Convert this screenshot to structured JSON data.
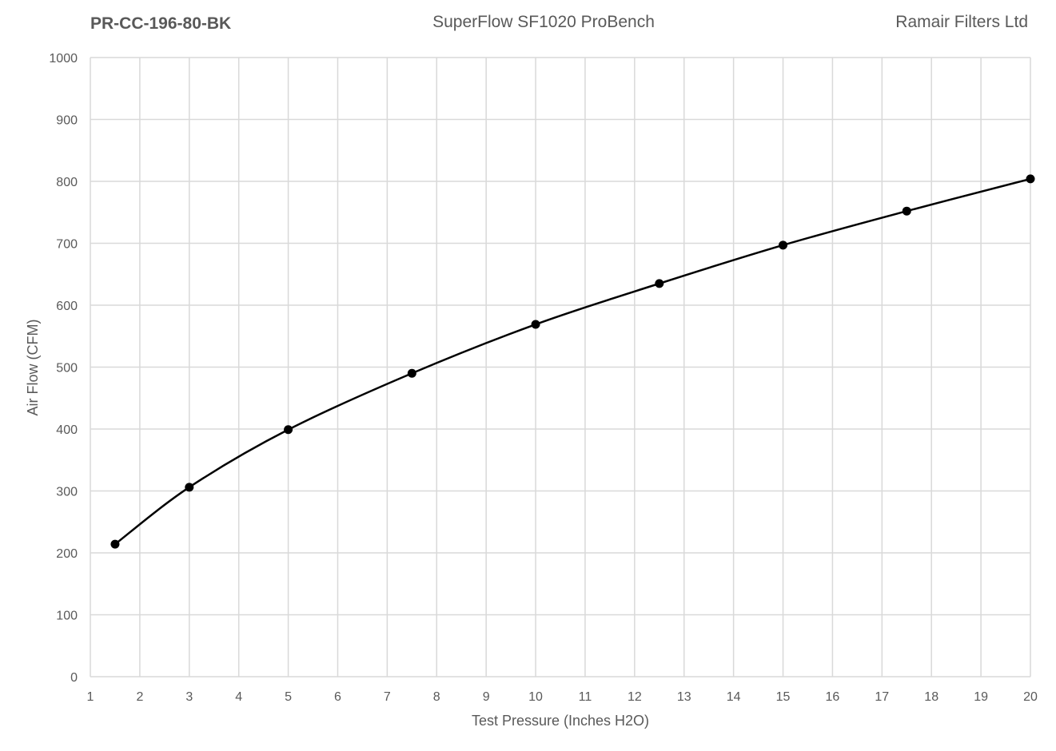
{
  "header": {
    "left": "PR-CC-196-80-BK",
    "center": "SuperFlow SF1020 ProBench",
    "right": "Ramair Filters Ltd"
  },
  "chart_data": {
    "type": "line",
    "title": "",
    "xlabel": "Test Pressure (Inches H2O)",
    "ylabel": "Air Flow (CFM)",
    "xlim": [
      1,
      20
    ],
    "ylim": [
      0,
      1000
    ],
    "x_ticks": [
      1,
      2,
      3,
      4,
      5,
      6,
      7,
      8,
      9,
      10,
      11,
      12,
      13,
      14,
      15,
      16,
      17,
      18,
      19,
      20
    ],
    "y_ticks": [
      0,
      100,
      200,
      300,
      400,
      500,
      600,
      700,
      800,
      900,
      1000
    ],
    "grid": true,
    "smooth": true,
    "markers": true,
    "line_color": "#000000",
    "grid_color": "#d9d9d9",
    "series": [
      {
        "x": [
          1.5,
          3,
          5,
          7.5,
          10,
          12.5,
          15,
          17.5,
          20
        ],
        "y": [
          214,
          306,
          399,
          490,
          569,
          635,
          697,
          752,
          804
        ]
      }
    ]
  }
}
